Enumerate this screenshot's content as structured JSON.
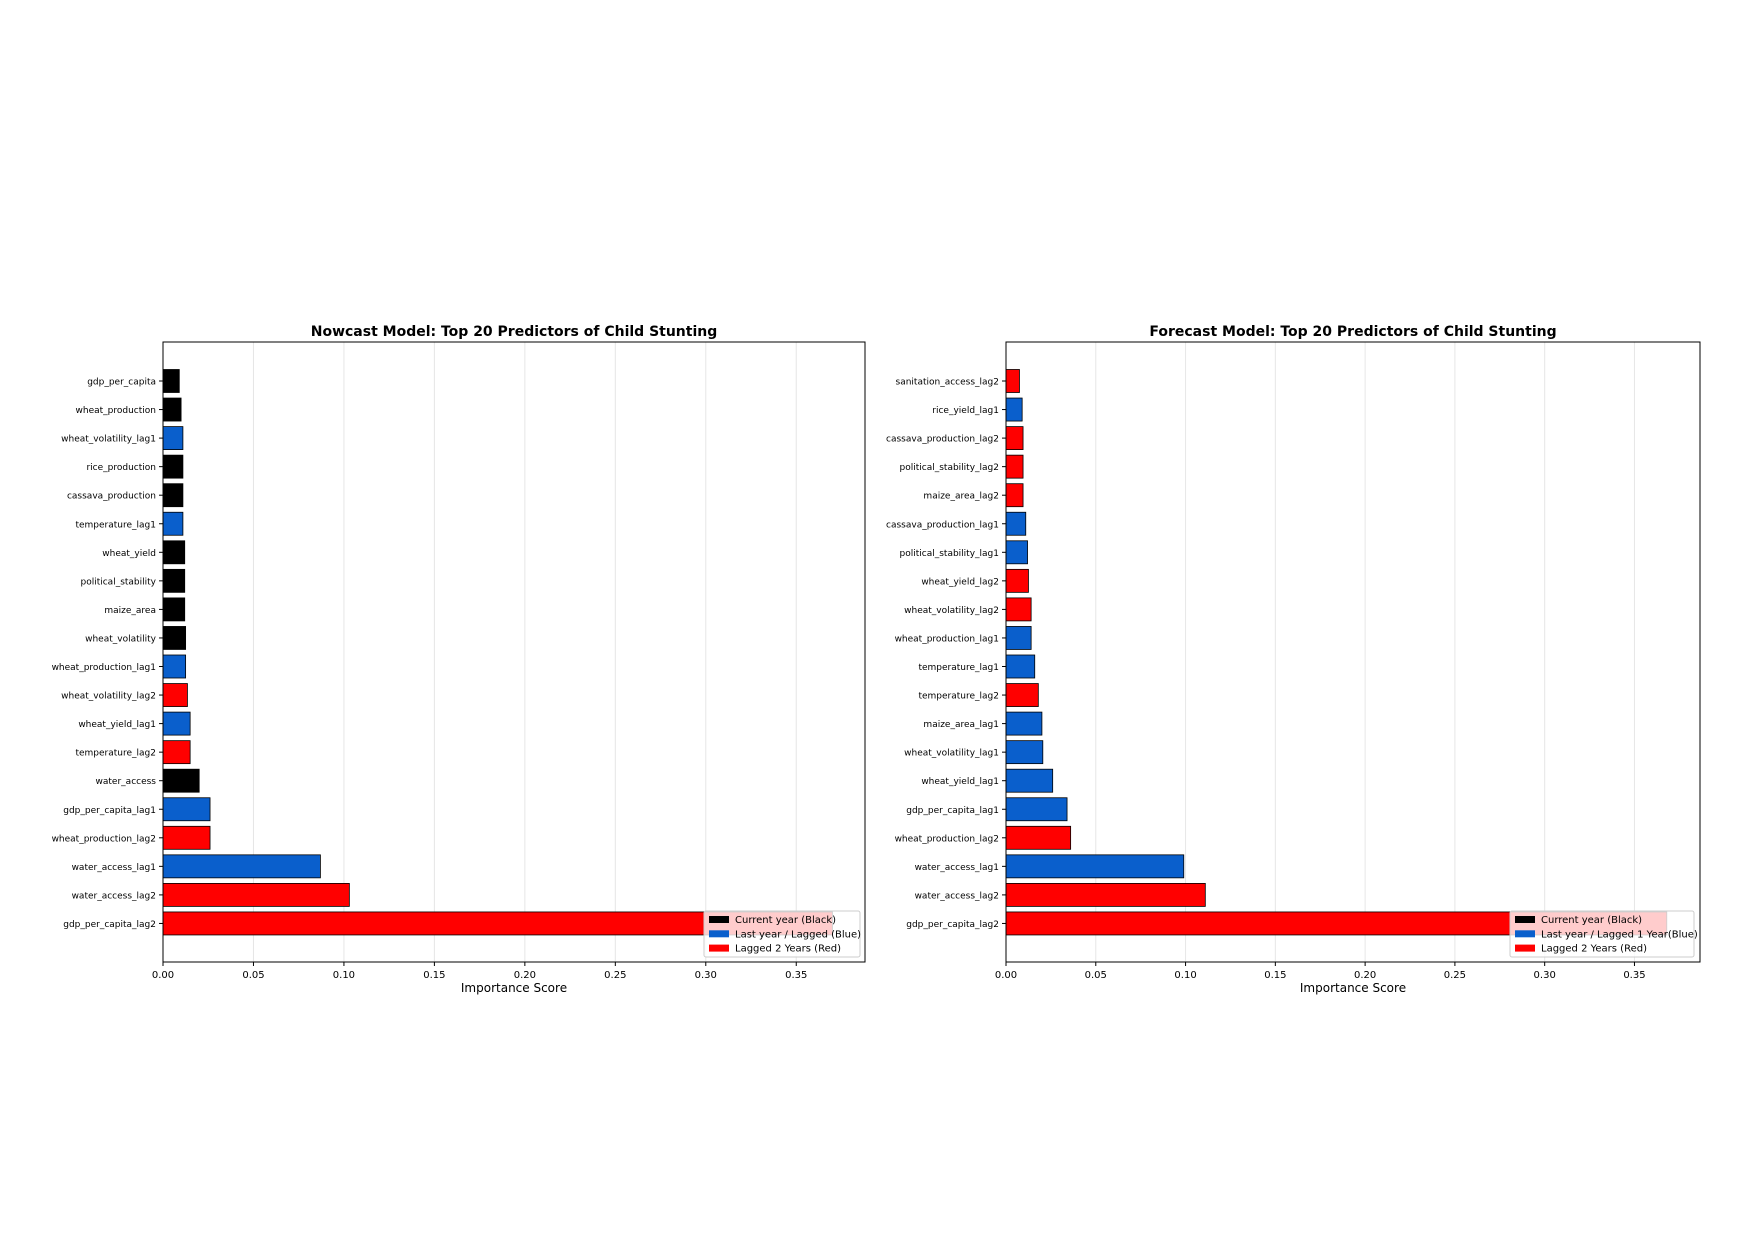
{
  "colors": {
    "current": "#000000",
    "lag1": "#0a5fcc",
    "lag2": "#ff0000",
    "legend_bg": "#ffffff",
    "grid": "#e6e6e6"
  },
  "chart_data": [
    {
      "type": "bar",
      "orientation": "horizontal",
      "title": "Nowcast Model: Top 20 Predictors of Child Stunting",
      "xlabel": "Importance Score",
      "ylabel": "",
      "xlim": [
        0,
        0.388
      ],
      "xticks": [
        "0.00",
        "0.05",
        "0.10",
        "0.15",
        "0.20",
        "0.25",
        "0.30",
        "0.35"
      ],
      "grid": "x",
      "legend_position": "lower right",
      "legend": [
        {
          "label": "Current year (Black)",
          "group": "current"
        },
        {
          "label": "Last year / Lagged (Blue)",
          "group": "lag1"
        },
        {
          "label": "Lagged 2 Years (Red)",
          "group": "lag2"
        }
      ],
      "categories": [
        "gdp_per_capita",
        "wheat_production",
        "wheat_volatility_lag1",
        "rice_production",
        "cassava_production",
        "temperature_lag1",
        "wheat_yield",
        "political_stability",
        "maize_area",
        "wheat_volatility",
        "wheat_production_lag1",
        "wheat_volatility_lag2",
        "wheat_yield_lag1",
        "temperature_lag2",
        "water_access",
        "gdp_per_capita_lag1",
        "wheat_production_lag2",
        "water_access_lag1",
        "water_access_lag2",
        "gdp_per_capita_lag2"
      ],
      "values": [
        0.009,
        0.01,
        0.011,
        0.011,
        0.011,
        0.011,
        0.012,
        0.012,
        0.012,
        0.0125,
        0.0125,
        0.0135,
        0.015,
        0.015,
        0.02,
        0.026,
        0.026,
        0.087,
        0.103,
        0.37
      ],
      "groups": [
        "current",
        "current",
        "lag1",
        "current",
        "current",
        "lag1",
        "current",
        "current",
        "current",
        "current",
        "lag1",
        "lag2",
        "lag1",
        "lag2",
        "current",
        "lag1",
        "lag2",
        "lag1",
        "lag2",
        "lag2"
      ]
    },
    {
      "type": "bar",
      "orientation": "horizontal",
      "title": "Forecast Model: Top 20 Predictors of Child Stunting",
      "xlabel": "Importance Score",
      "ylabel": "",
      "xlim": [
        0,
        0.3865
      ],
      "xticks": [
        "0.00",
        "0.05",
        "0.10",
        "0.15",
        "0.20",
        "0.25",
        "0.30",
        "0.35"
      ],
      "grid": "x",
      "legend_position": "lower right",
      "legend": [
        {
          "label": "Current year (Black)",
          "group": "current"
        },
        {
          "label": "Last year / Lagged 1 Year(Blue)",
          "group": "lag1"
        },
        {
          "label": "Lagged 2 Years (Red)",
          "group": "lag2"
        }
      ],
      "categories": [
        "sanitation_access_lag2",
        "rice_yield_lag1",
        "cassava_production_lag2",
        "political_stability_lag2",
        "maize_area_lag2",
        "cassava_production_lag1",
        "political_stability_lag1",
        "wheat_yield_lag2",
        "wheat_volatility_lag2",
        "wheat_production_lag1",
        "temperature_lag1",
        "temperature_lag2",
        "maize_area_lag1",
        "wheat_volatility_lag1",
        "wheat_yield_lag1",
        "gdp_per_capita_lag1",
        "wheat_production_lag2",
        "water_access_lag1",
        "water_access_lag2",
        "gdp_per_capita_lag2"
      ],
      "values": [
        0.0075,
        0.009,
        0.0095,
        0.0095,
        0.0095,
        0.011,
        0.012,
        0.0125,
        0.014,
        0.014,
        0.016,
        0.018,
        0.02,
        0.0205,
        0.026,
        0.034,
        0.036,
        0.099,
        0.111,
        0.368
      ],
      "groups": [
        "lag2",
        "lag1",
        "lag2",
        "lag2",
        "lag2",
        "lag1",
        "lag1",
        "lag2",
        "lag2",
        "lag1",
        "lag1",
        "lag2",
        "lag1",
        "lag1",
        "lag1",
        "lag1",
        "lag2",
        "lag1",
        "lag2",
        "lag2"
      ]
    }
  ]
}
